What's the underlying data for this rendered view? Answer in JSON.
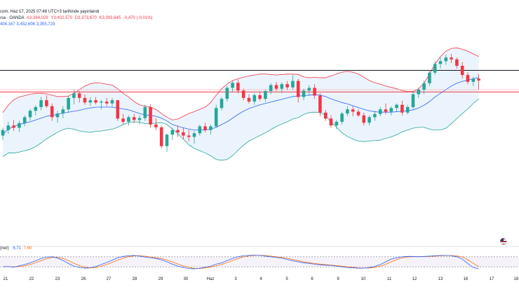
{
  "header": {
    "line1_prefix": "com, Haz 17, 2025 07:48 UTC+3 tarihinde yayınlandı",
    "line2_prefix": "ısa · OANDA",
    "open": "A3,394,029",
    "high": "Y3,402,570",
    "low": "D3,373,670",
    "close": "K3,393,845",
    "change": "-0,470 (-0,01%)",
    "bb_values": "404,167  3,452,606  3,355,729"
  },
  "stoch": {
    "label": "(ner)",
    "k": "6,71",
    "d": "7,60"
  },
  "colors": {
    "up": "#26a69a",
    "down": "#f23645",
    "upper_band": "#f23645",
    "middle_band": "#2962ff",
    "lower_band": "#26a69a",
    "band_fill": "#e3f0fb",
    "stoch_k": "#2962ff",
    "stoch_d": "#ff6d00"
  },
  "chart_data": {
    "type": "candlestick",
    "x_tick_labels": [
      "21",
      "22",
      "23",
      "26",
      "27",
      "28",
      "29",
      "30",
      "Haz",
      "3",
      "4",
      "5",
      "6",
      "9",
      "10",
      "11",
      "12",
      "13",
      "16",
      "17",
      "18"
    ],
    "candles": [
      [
        3328,
        3345,
        3318,
        3340
      ],
      [
        3340,
        3358,
        3332,
        3350
      ],
      [
        3350,
        3362,
        3338,
        3345
      ],
      [
        3345,
        3360,
        3335,
        3355
      ],
      [
        3355,
        3372,
        3348,
        3368
      ],
      [
        3368,
        3386,
        3360,
        3382
      ],
      [
        3382,
        3394,
        3372,
        3390
      ],
      [
        3390,
        3412,
        3383,
        3405
      ],
      [
        3405,
        3416,
        3388,
        3392
      ],
      [
        3392,
        3398,
        3360,
        3368
      ],
      [
        3368,
        3382,
        3356,
        3376
      ],
      [
        3376,
        3392,
        3366,
        3385
      ],
      [
        3385,
        3415,
        3378,
        3410
      ],
      [
        3410,
        3428,
        3396,
        3420
      ],
      [
        3420,
        3425,
        3400,
        3410
      ],
      [
        3410,
        3418,
        3395,
        3400
      ],
      [
        3400,
        3412,
        3392,
        3405
      ],
      [
        3405,
        3412,
        3396,
        3400
      ],
      [
        3400,
        3406,
        3385,
        3402
      ],
      [
        3402,
        3410,
        3392,
        3398
      ],
      [
        3398,
        3410,
        3390,
        3405
      ],
      [
        3405,
        3406,
        3360,
        3365
      ],
      [
        3365,
        3375,
        3352,
        3358
      ],
      [
        3358,
        3372,
        3350,
        3368
      ],
      [
        3368,
        3375,
        3355,
        3362
      ],
      [
        3362,
        3372,
        3352,
        3366
      ],
      [
        3366,
        3395,
        3360,
        3390
      ],
      [
        3390,
        3396,
        3345,
        3352
      ],
      [
        3352,
        3365,
        3340,
        3346
      ],
      [
        3346,
        3350,
        3300,
        3305
      ],
      [
        3305,
        3332,
        3292,
        3330
      ],
      [
        3330,
        3345,
        3318,
        3340
      ],
      [
        3340,
        3350,
        3325,
        3335
      ],
      [
        3335,
        3345,
        3320,
        3328
      ],
      [
        3328,
        3340,
        3315,
        3325
      ],
      [
        3325,
        3338,
        3310,
        3333
      ],
      [
        3333,
        3352,
        3328,
        3348
      ],
      [
        3348,
        3356,
        3335,
        3340
      ],
      [
        3340,
        3352,
        3330,
        3348
      ],
      [
        3348,
        3395,
        3345,
        3388
      ],
      [
        3388,
        3412,
        3383,
        3408
      ],
      [
        3408,
        3436,
        3402,
        3432
      ],
      [
        3432,
        3448,
        3424,
        3443
      ],
      [
        3443,
        3450,
        3420,
        3426
      ],
      [
        3426,
        3430,
        3405,
        3410
      ],
      [
        3410,
        3418,
        3398,
        3402
      ],
      [
        3402,
        3420,
        3395,
        3416
      ],
      [
        3416,
        3424,
        3404,
        3408
      ],
      [
        3408,
        3428,
        3402,
        3425
      ],
      [
        3425,
        3442,
        3418,
        3438
      ],
      [
        3438,
        3445,
        3425,
        3430
      ],
      [
        3430,
        3444,
        3420,
        3440
      ],
      [
        3440,
        3447,
        3428,
        3433
      ],
      [
        3433,
        3460,
        3428,
        3447
      ],
      [
        3447,
        3452,
        3400,
        3412
      ],
      [
        3412,
        3430,
        3405,
        3426
      ],
      [
        3426,
        3438,
        3415,
        3432
      ],
      [
        3432,
        3440,
        3408,
        3415
      ],
      [
        3415,
        3420,
        3370,
        3378
      ],
      [
        3378,
        3384,
        3360,
        3365
      ],
      [
        3365,
        3372,
        3345,
        3350
      ],
      [
        3350,
        3362,
        3342,
        3358
      ],
      [
        3358,
        3380,
        3352,
        3376
      ],
      [
        3376,
        3392,
        3370,
        3385
      ],
      [
        3385,
        3392,
        3370,
        3380
      ],
      [
        3380,
        3385,
        3368,
        3372
      ],
      [
        3372,
        3378,
        3350,
        3356
      ],
      [
        3356,
        3372,
        3350,
        3368
      ],
      [
        3368,
        3382,
        3360,
        3375
      ],
      [
        3375,
        3390,
        3370,
        3385
      ],
      [
        3385,
        3398,
        3374,
        3380
      ],
      [
        3380,
        3392,
        3372,
        3388
      ],
      [
        3388,
        3398,
        3380,
        3395
      ],
      [
        3395,
        3404,
        3372,
        3378
      ],
      [
        3378,
        3395,
        3374,
        3390
      ],
      [
        3390,
        3425,
        3386,
        3418
      ],
      [
        3418,
        3432,
        3410,
        3428
      ],
      [
        3428,
        3448,
        3418,
        3442
      ],
      [
        3442,
        3470,
        3436,
        3465
      ],
      [
        3465,
        3490,
        3460,
        3484
      ],
      [
        3484,
        3498,
        3474,
        3490
      ],
      [
        3490,
        3504,
        3482,
        3498
      ],
      [
        3498,
        3506,
        3486,
        3494
      ],
      [
        3494,
        3498,
        3474,
        3480
      ],
      [
        3480,
        3488,
        3452,
        3460
      ],
      [
        3460,
        3466,
        3440,
        3445
      ],
      [
        3445,
        3456,
        3436,
        3452
      ],
      [
        3452,
        3462,
        3428,
        3448
      ]
    ],
    "bollinger": {
      "upper": [
        3378,
        3394,
        3406,
        3412,
        3415,
        3418,
        3420,
        3420,
        3419,
        3416,
        3413,
        3413,
        3414,
        3420,
        3428,
        3436,
        3441,
        3443,
        3442,
        3440,
        3438,
        3430,
        3420,
        3412,
        3402,
        3395,
        3392,
        3390,
        3385,
        3376,
        3368,
        3362,
        3364,
        3370,
        3376,
        3380,
        3385,
        3390,
        3400,
        3416,
        3430,
        3440,
        3448,
        3452,
        3455,
        3458,
        3460,
        3462,
        3462,
        3461,
        3460,
        3461,
        3462,
        3462,
        3461,
        3456,
        3454,
        3455,
        3454,
        3454,
        3458,
        3462,
        3466,
        3468,
        3466,
        3462,
        3455,
        3448,
        3443,
        3440,
        3436,
        3433,
        3430,
        3426,
        3424,
        3424,
        3430,
        3442,
        3462,
        3484,
        3500,
        3512,
        3518,
        3519,
        3516,
        3512,
        3506,
        3500
      ],
      "middle": [
        3330,
        3342,
        3348,
        3352,
        3355,
        3358,
        3362,
        3366,
        3370,
        3372,
        3374,
        3377,
        3379,
        3381,
        3383,
        3386,
        3388,
        3390,
        3390,
        3390,
        3390,
        3388,
        3386,
        3384,
        3380,
        3376,
        3373,
        3372,
        3370,
        3366,
        3360,
        3352,
        3348,
        3345,
        3342,
        3340,
        3340,
        3340,
        3342,
        3346,
        3352,
        3358,
        3366,
        3374,
        3381,
        3387,
        3391,
        3395,
        3398,
        3401,
        3404,
        3407,
        3410,
        3413,
        3414,
        3415,
        3416,
        3417,
        3416,
        3413,
        3408,
        3404,
        3400,
        3397,
        3393,
        3389,
        3385,
        3382,
        3380,
        3379,
        3379,
        3379,
        3380,
        3381,
        3382,
        3384,
        3388,
        3394,
        3402,
        3412,
        3420,
        3428,
        3436,
        3442,
        3446,
        3449,
        3452,
        3454
      ],
      "lower": [
        3282,
        3290,
        3290,
        3292,
        3295,
        3298,
        3304,
        3312,
        3321,
        3328,
        3335,
        3341,
        3344,
        3342,
        3338,
        3336,
        3335,
        3337,
        3338,
        3340,
        3342,
        3346,
        3352,
        3356,
        3358,
        3357,
        3354,
        3354,
        3355,
        3356,
        3352,
        3342,
        3332,
        3320,
        3308,
        3300,
        3295,
        3290,
        3284,
        3276,
        3274,
        3276,
        3284,
        3296,
        3307,
        3316,
        3322,
        3328,
        3334,
        3341,
        3348,
        3353,
        3358,
        3364,
        3367,
        3374,
        3378,
        3379,
        3378,
        3372,
        3358,
        3346,
        3334,
        3326,
        3320,
        3316,
        3315,
        3316,
        3317,
        3318,
        3322,
        3325,
        3330,
        3336,
        3340,
        3344,
        3346,
        3346,
        3342,
        3340,
        3340,
        3344,
        3354,
        3365,
        3376,
        3386,
        3398,
        3408
      ]
    },
    "horizontal_lines": [
      {
        "value": 3470,
        "color": "#131722"
      },
      {
        "value": 3423,
        "color": "#f23645"
      },
      {
        "value": 3428,
        "color": "#f7a8ad"
      }
    ],
    "y_range": [
      3120,
      3570
    ],
    "stoch_k": [
      20,
      22,
      18,
      26,
      34,
      44,
      56,
      70,
      78,
      80,
      72,
      58,
      40,
      24,
      16,
      12,
      14,
      22,
      34,
      46,
      60,
      74,
      82,
      86,
      88,
      84,
      78,
      74,
      70,
      62,
      50,
      36,
      24,
      16,
      10,
      8,
      12,
      18,
      24,
      36,
      44,
      58,
      70,
      80,
      86,
      88,
      90,
      88,
      84,
      80,
      76,
      72,
      64,
      56,
      50,
      44,
      40,
      36,
      32,
      30,
      28,
      24,
      20,
      16,
      14,
      12,
      12,
      16,
      22,
      34,
      50,
      66,
      74,
      80,
      82,
      82,
      80,
      82,
      84,
      86,
      88,
      88,
      86,
      80,
      66,
      40,
      16,
      8
    ],
    "stoch_d": [
      22,
      21,
      20,
      22,
      26,
      34,
      45,
      57,
      68,
      76,
      77,
      70,
      57,
      41,
      27,
      17,
      14,
      16,
      23,
      34,
      47,
      60,
      72,
      81,
      85,
      86,
      83,
      79,
      74,
      69,
      61,
      49,
      37,
      25,
      17,
      11,
      10,
      13,
      18,
      26,
      35,
      46,
      57,
      69,
      79,
      85,
      88,
      89,
      87,
      84,
      80,
      76,
      71,
      64,
      57,
      50,
      45,
      40,
      36,
      33,
      30,
      27,
      24,
      20,
      17,
      14,
      13,
      13,
      17,
      24,
      35,
      50,
      63,
      73,
      79,
      81,
      81,
      81,
      82,
      84,
      86,
      87,
      87,
      85,
      79,
      62,
      41,
      21
    ],
    "stoch_levels": [
      80,
      20
    ]
  }
}
